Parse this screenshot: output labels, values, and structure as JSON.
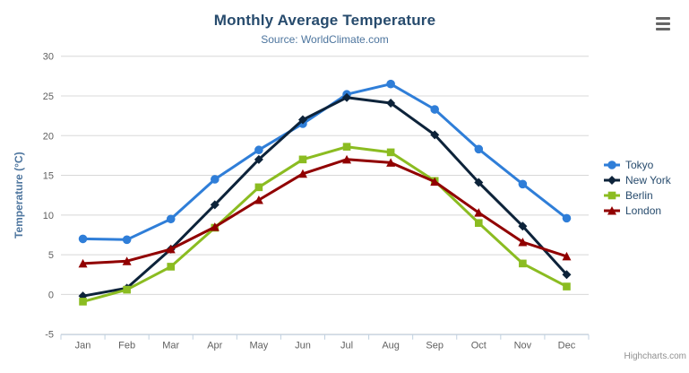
{
  "chart_data": {
    "type": "line",
    "title": "Monthly Average Temperature",
    "subtitle": "Source: WorldClimate.com",
    "xlabel": "",
    "ylabel": "Temperature (°C)",
    "categories": [
      "Jan",
      "Feb",
      "Mar",
      "Apr",
      "May",
      "Jun",
      "Jul",
      "Aug",
      "Sep",
      "Oct",
      "Nov",
      "Dec"
    ],
    "ylim": [
      -5,
      30
    ],
    "ytick_interval": 5,
    "yticks": [
      -5,
      0,
      5,
      10,
      15,
      20,
      25,
      30
    ],
    "grid": true,
    "legend_position": "right",
    "series": [
      {
        "name": "Tokyo",
        "color": "#2f7ed8",
        "marker": "circle",
        "values": [
          7.0,
          6.9,
          9.5,
          14.5,
          18.2,
          21.5,
          25.2,
          26.5,
          23.3,
          18.3,
          13.9,
          9.6
        ]
      },
      {
        "name": "New York",
        "color": "#0d233a",
        "marker": "diamond",
        "values": [
          -0.2,
          0.8,
          5.7,
          11.3,
          17.0,
          22.0,
          24.8,
          24.1,
          20.1,
          14.1,
          8.6,
          2.5
        ]
      },
      {
        "name": "Berlin",
        "color": "#8bbc21",
        "marker": "square",
        "values": [
          -0.9,
          0.6,
          3.5,
          8.4,
          13.5,
          17.0,
          18.6,
          17.9,
          14.3,
          9.0,
          3.9,
          1.0
        ]
      },
      {
        "name": "London",
        "color": "#910000",
        "marker": "triangle",
        "values": [
          3.9,
          4.2,
          5.7,
          8.5,
          11.9,
          15.2,
          17.0,
          16.6,
          14.2,
          10.3,
          6.6,
          4.8
        ]
      }
    ]
  },
  "credits": "Highcharts.com",
  "export_menu": {
    "icon": "hamburger-icon",
    "tooltip": "Chart context menu"
  },
  "colors": {
    "title": "#274b6d",
    "subtitle": "#4d759e",
    "axis_title": "#4d759e",
    "axis_labels": "#606060",
    "gridline": "#d8d8d8",
    "axis_line": "#c0d0e0",
    "legend_text": "#274b6d",
    "credits": "#909090",
    "background": "#ffffff"
  }
}
